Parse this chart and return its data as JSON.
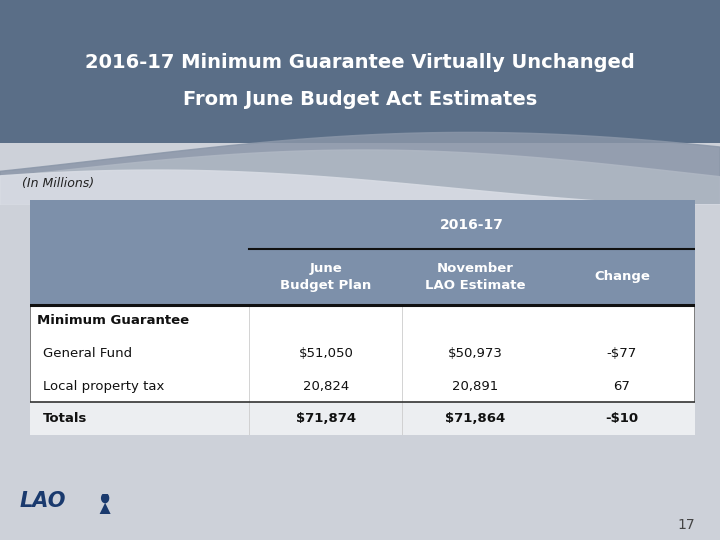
{
  "title_line1": "2016-17 Minimum Guarantee Virtually Unchanged",
  "title_line2": "From June Budget Act Estimates",
  "subtitle": "(In Millions)",
  "page_number": "17",
  "header_bg": "#5a6e87",
  "body_bg": "#cdd1d9",
  "table_header_bg": "#7d90aa",
  "title_color": "#ffffff",
  "table_col_header": "2016-17",
  "col1_header_line1": "June",
  "col1_header_line2": "Budget Plan",
  "col2_header_line1": "November",
  "col2_header_line2": "LAO Estimate",
  "col3_header": "Change",
  "rows": [
    {
      "label": "Minimum Guarantee",
      "bold": true,
      "indent": false,
      "col1": "",
      "col2": "",
      "col3": ""
    },
    {
      "label": "General Fund",
      "bold": false,
      "indent": true,
      "col1": "$51,050",
      "col2": "$50,973",
      "col3": "-$77"
    },
    {
      "label": "Local property tax",
      "bold": false,
      "indent": true,
      "col1": "20,824",
      "col2": "20,891",
      "col3": "67"
    },
    {
      "label": "Totals",
      "bold": true,
      "indent": true,
      "col1": "$71,874",
      "col2": "$71,864",
      "col3": "-$10"
    }
  ],
  "lao_color": "#1a3a6e",
  "col_boundaries": [
    0.0,
    0.33,
    0.56,
    0.78,
    1.0
  ]
}
